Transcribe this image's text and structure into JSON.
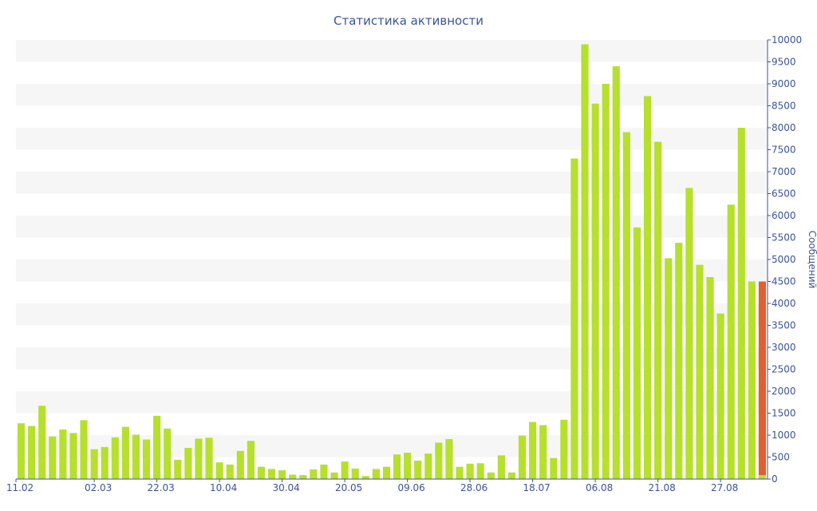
{
  "chart_data": {
    "type": "bar",
    "title": "Статистика активности",
    "xlabel": "",
    "ylabel": "Сообщений",
    "ylim": [
      0,
      10000
    ],
    "yticks": [
      0,
      500,
      1000,
      1500,
      2000,
      2500,
      3000,
      3500,
      4000,
      4500,
      5000,
      5500,
      6000,
      6500,
      7000,
      7500,
      8000,
      8500,
      9000,
      9500,
      10000
    ],
    "xtick_labels": [
      "11.02",
      "02.03",
      "22.03",
      "10.04",
      "30.04",
      "20.05",
      "09.06",
      "28.06",
      "18.07",
      "06.08",
      "21.08",
      "27.08"
    ],
    "xtick_bar_index": [
      0,
      7,
      13,
      19,
      25,
      31,
      37,
      43,
      49,
      55,
      61,
      67
    ],
    "grid": "horizontal bands",
    "colors": {
      "bar": "#b6e02c",
      "highlight": "#e06031",
      "text": "#3e5398",
      "band": "#f6f6f6"
    },
    "values": [
      1270,
      1210,
      1670,
      970,
      1130,
      1050,
      1340,
      680,
      730,
      950,
      1190,
      1010,
      900,
      1440,
      1150,
      440,
      710,
      920,
      940,
      380,
      330,
      640,
      870,
      280,
      230,
      200,
      100,
      90,
      220,
      330,
      150,
      400,
      240,
      70,
      230,
      280,
      560,
      600,
      420,
      580,
      830,
      910,
      280,
      350,
      360,
      150,
      540,
      150,
      990,
      1300,
      1230,
      480,
      1350,
      7300,
      9900,
      8550,
      9000,
      9400,
      7900,
      5730,
      8720,
      7680,
      5030,
      5380,
      6630,
      4880,
      4600,
      3770,
      6250,
      8000,
      4500,
      4500
    ],
    "highlight": {
      "index": 71,
      "value": 4500,
      "base_value": 90
    }
  }
}
